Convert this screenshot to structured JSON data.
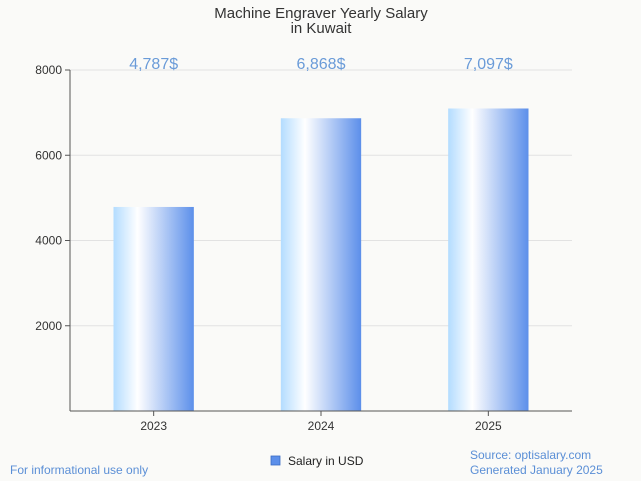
{
  "chart_data": {
    "type": "bar",
    "title_line1": "Machine Engraver Yearly Salary",
    "title_line2": "in Kuwait",
    "categories": [
      "2023",
      "2024",
      "2025"
    ],
    "series": [
      {
        "name": "Salary in USD",
        "values": [
          4787,
          6868,
          7097
        ]
      }
    ],
    "data_labels": [
      "4,787$",
      "6,868$",
      "7,097$"
    ],
    "ylim": [
      0,
      8000
    ],
    "yticks": [
      2000,
      4000,
      6000,
      8000
    ],
    "grid": true,
    "legend_position": "bottom"
  },
  "footer": {
    "left_note": "For informational use only",
    "source": "Source: optisalary.com",
    "generated": "Generated January 2025"
  },
  "colors": {
    "bar_light": "#ffffff",
    "bar_mid": "#b3dcff",
    "bar_dark": "#5c8fea",
    "label": "#6a9bd8",
    "grid": "#e2e2e2",
    "axis": "#555555"
  }
}
